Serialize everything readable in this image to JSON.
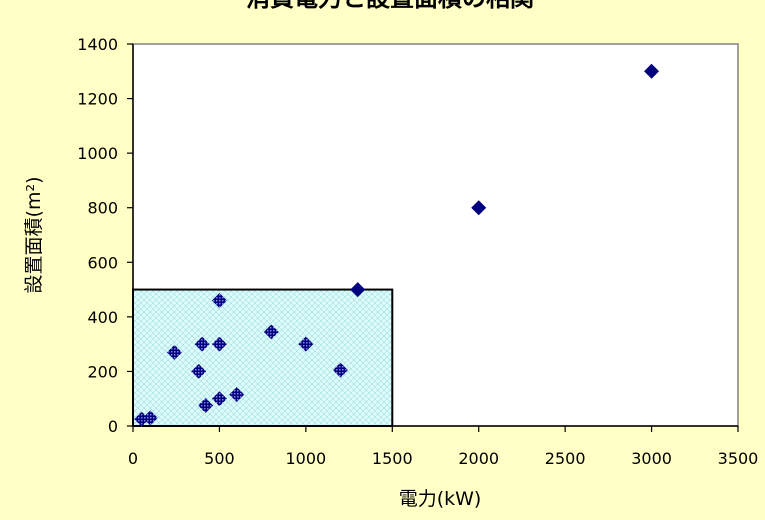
{
  "chart_data": {
    "type": "scatter",
    "title": "消費電力と設置面積の相関",
    "xlabel": "電力(kW)",
    "ylabel": "設置面積(m²)",
    "xlim": [
      0,
      3500
    ],
    "ylim": [
      0,
      1400
    ],
    "xticks": [
      0,
      500,
      1000,
      1500,
      2000,
      2500,
      3000,
      3500
    ],
    "yticks": [
      0,
      200,
      400,
      600,
      800,
      1000,
      1200,
      1400
    ],
    "grid": false,
    "highlight_region": {
      "x": [
        0,
        1500
      ],
      "y": [
        0,
        500
      ]
    },
    "points": [
      {
        "x": 50,
        "y": 25
      },
      {
        "x": 100,
        "y": 30
      },
      {
        "x": 240,
        "y": 270
      },
      {
        "x": 380,
        "y": 200
      },
      {
        "x": 400,
        "y": 300
      },
      {
        "x": 420,
        "y": 75
      },
      {
        "x": 500,
        "y": 460
      },
      {
        "x": 500,
        "y": 300
      },
      {
        "x": 500,
        "y": 100
      },
      {
        "x": 600,
        "y": 115
      },
      {
        "x": 800,
        "y": 345
      },
      {
        "x": 1000,
        "y": 300
      },
      {
        "x": 1200,
        "y": 205
      },
      {
        "x": 1300,
        "y": 500
      },
      {
        "x": 2000,
        "y": 800
      },
      {
        "x": 3000,
        "y": 1300
      }
    ],
    "colors": {
      "background": "#ffffc6",
      "marker": "#000080",
      "region_fill": "#c6ffff"
    }
  }
}
